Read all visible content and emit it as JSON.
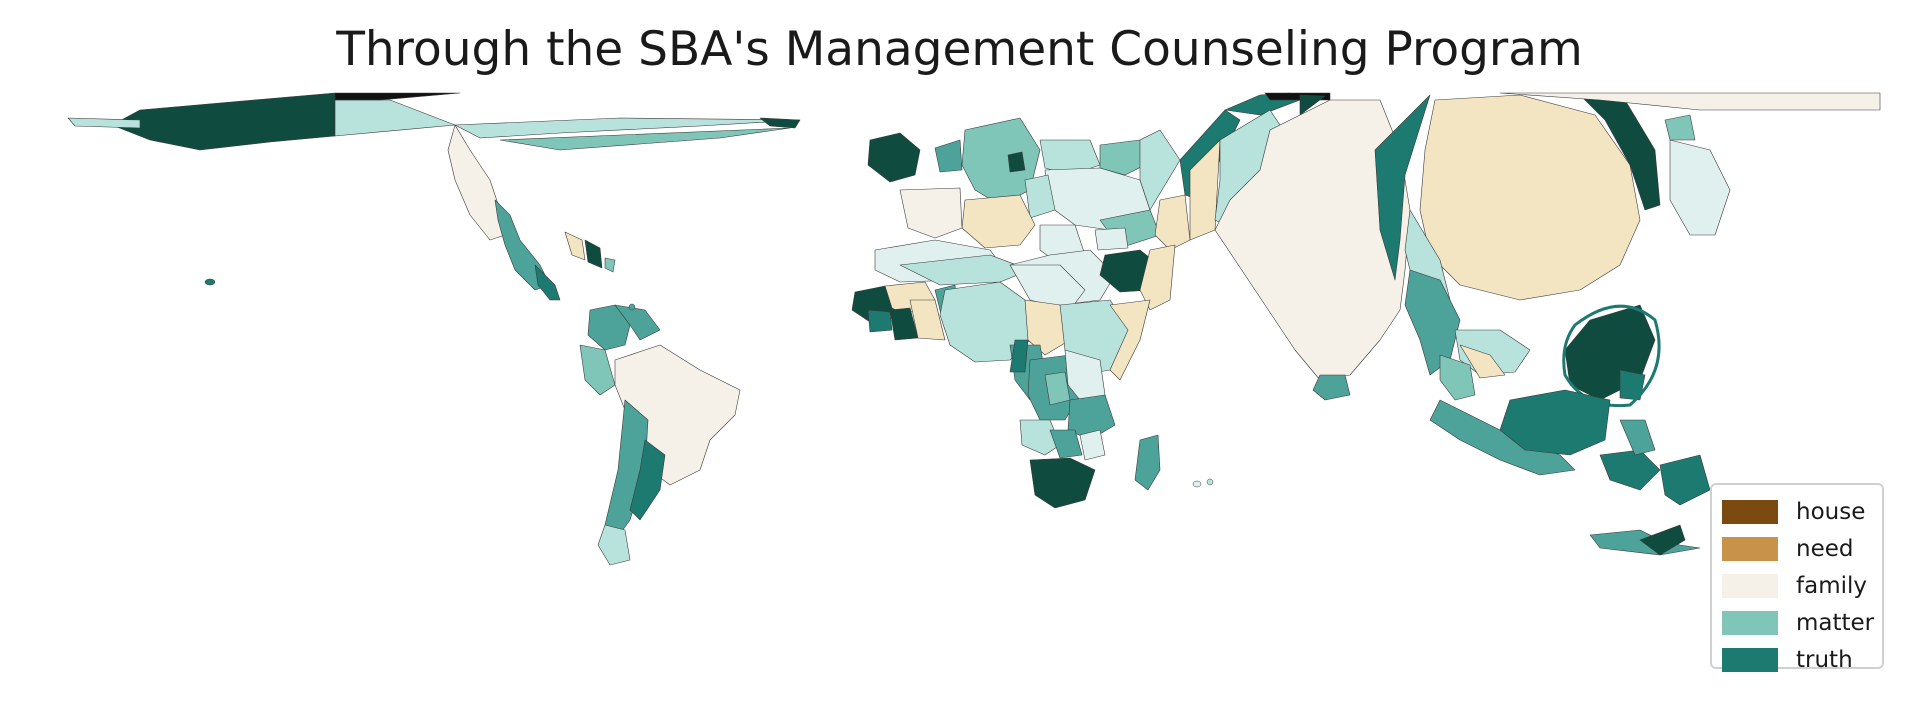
{
  "title": "Through the SBA's Management Counseling Program",
  "legend": {
    "items": [
      {
        "label": "house",
        "color": "#7b4a10"
      },
      {
        "label": "need",
        "color": "#c9924a"
      },
      {
        "label": "family",
        "color": "#f5f1e8"
      },
      {
        "label": "matter",
        "color": "#7fc6b9"
      },
      {
        "label": "truth",
        "color": "#1c7a70"
      }
    ]
  },
  "palette": {
    "darkest": "#0f4c3f",
    "dark_teal": "#1c7a70",
    "teal": "#4da39a",
    "light_teal": "#7fc6b9",
    "pale_teal": "#b8e2dc",
    "very_pale_teal": "#e0f0ee",
    "cream": "#f5f1e8",
    "wheat": "#f3e4c2",
    "border": "#3a3a3a"
  }
}
